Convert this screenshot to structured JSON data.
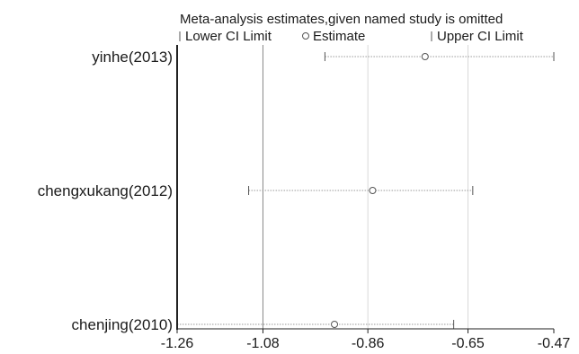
{
  "chart_data": {
    "type": "scatter",
    "title": "Meta-analysis estimates,given named study is omitted",
    "legend": {
      "placement": "top",
      "entries": [
        "Lower CI Limit",
        "Estimate",
        "Upper CI Limit"
      ]
    },
    "x_ticks": [
      "-1.26",
      "-1.08",
      "-0.86",
      "-0.65",
      "-0.47"
    ],
    "xlim": [
      -1.26,
      -0.47
    ],
    "reference_line": -1.08,
    "grid": "vertical",
    "studies": [
      {
        "name": "yinhe(2013)",
        "lower": -0.95,
        "estimate": -0.74,
        "upper": -0.47
      },
      {
        "name": "chengxukang(2012)",
        "lower": -1.11,
        "estimate": -0.85,
        "upper": -0.64
      },
      {
        "name": "chenjing(2010)",
        "lower": -1.26,
        "estimate": -0.93,
        "upper": -0.68
      }
    ],
    "colors": {
      "axis": "#222222",
      "grid": "#d9d9d9",
      "reference": "#888888",
      "ci": "#9a9a9a",
      "marker": "#555555"
    }
  }
}
